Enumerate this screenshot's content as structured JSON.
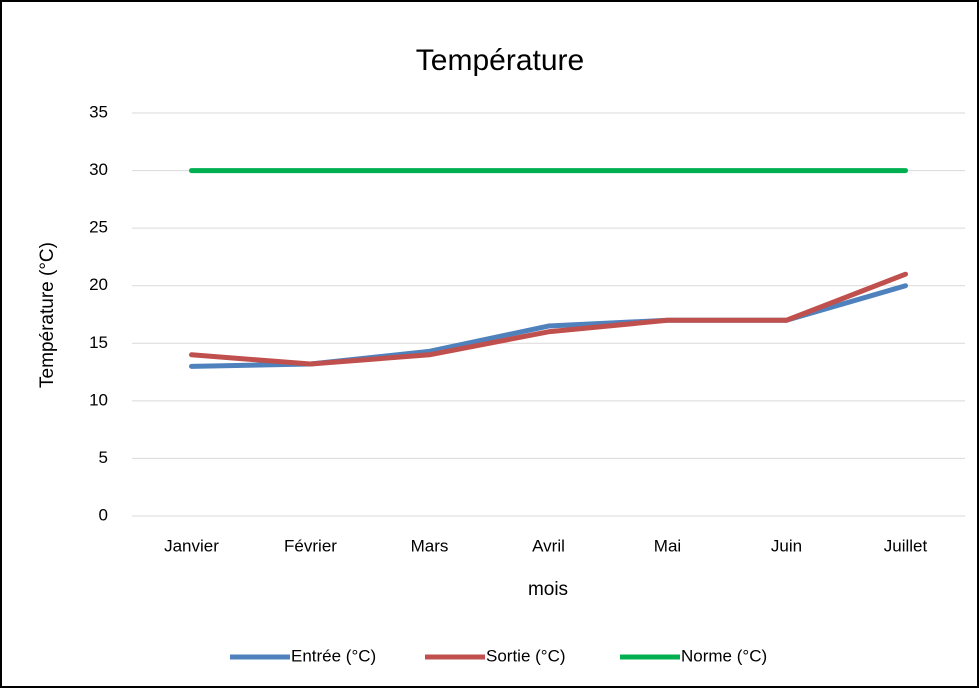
{
  "chart_data": {
    "type": "line",
    "title": "Température",
    "x_label": "mois",
    "y_label": "Température (°C)",
    "categories": [
      "Janvier",
      "Février",
      "Mars",
      "Avril",
      "Mai",
      "Juin",
      "Juillet"
    ],
    "series": [
      {
        "name": "Entrée (°C)",
        "color": "#4f81bd",
        "values": [
          13,
          13.2,
          14.3,
          16.5,
          17,
          17,
          20
        ]
      },
      {
        "name": "Sortie (°C)",
        "color": "#c0504d",
        "values": [
          14,
          13.2,
          14,
          16,
          17,
          17,
          21
        ]
      },
      {
        "name": "Norme (°C)",
        "color": "#00b050",
        "values": [
          30,
          30,
          30,
          30,
          30,
          30,
          30
        ]
      }
    ],
    "ylim": [
      0,
      35
    ],
    "yticks": [
      0,
      5,
      10,
      15,
      20,
      25,
      30,
      35
    ],
    "grid": true,
    "legend": "bottom"
  }
}
